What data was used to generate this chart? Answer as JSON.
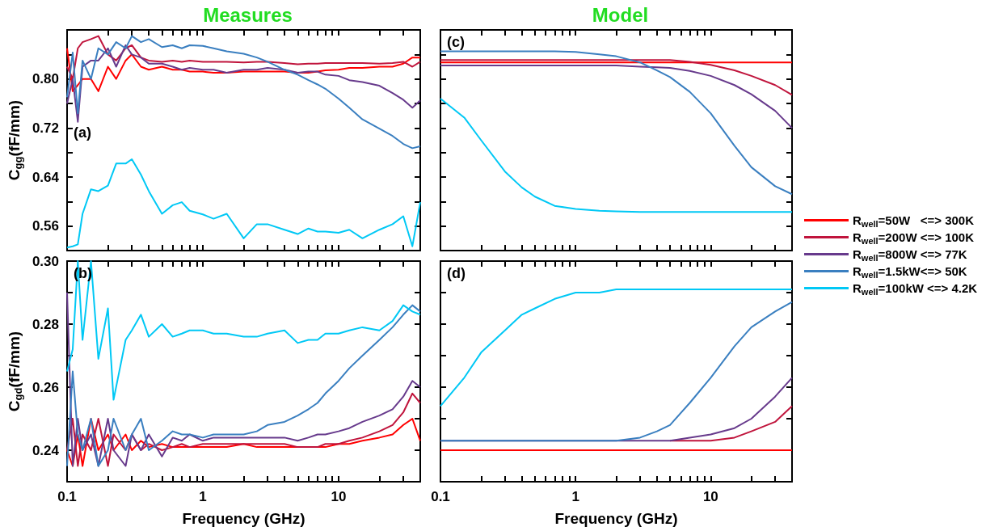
{
  "chart_data": [
    {
      "type": "line",
      "title": "Measures",
      "ylabel": "C$_{gg}$(fF/mm)",
      "annotations": [
        "(a)"
      ],
      "log": "x",
      "grid": false,
      "tick_labels": "y",
      "xlim": [
        0.1,
        40
      ],
      "xticks": [
        0.1,
        {
          "value": 0.2,
          "label": null
        },
        {
          "value": 0.3,
          "label": null
        },
        {
          "value": 0.4,
          "label": null
        },
        {
          "value": 0.5,
          "label": null
        },
        {
          "value": 0.6,
          "label": null
        },
        {
          "value": 0.7,
          "label": null
        },
        {
          "value": 0.8,
          "label": null
        },
        {
          "value": 0.9,
          "label": null
        },
        1,
        {
          "value": 2,
          "label": null
        },
        {
          "value": 3,
          "label": null
        },
        {
          "value": 4,
          "label": null
        },
        {
          "value": 5,
          "label": null
        },
        {
          "value": 6,
          "label": null
        },
        {
          "value": 7,
          "label": null
        },
        {
          "value": 8,
          "label": null
        },
        {
          "value": 9,
          "label": null
        },
        10,
        {
          "value": 20,
          "label": null
        },
        {
          "value": 30,
          "label": null
        }
      ],
      "ylim": [
        0.52,
        0.88
      ],
      "yticks": [
        0.56,
        {
          "value": 0.6,
          "label": null
        },
        0.64,
        {
          "value": 0.68,
          "label": null
        },
        0.72,
        {
          "value": 0.76,
          "label": null
        },
        {
          "value": 0.8,
          "label": "0.80"
        },
        {
          "value": 0.84,
          "label": null
        }
      ],
      "x": [
        0.1,
        0.11,
        0.12,
        0.13,
        0.15,
        0.17,
        0.2,
        0.23,
        0.27,
        0.3,
        0.35,
        0.4,
        0.5,
        0.6,
        0.7,
        0.8,
        1,
        1.2,
        1.5,
        2,
        2.5,
        3,
        4,
        5,
        6,
        7,
        8,
        10,
        12,
        15,
        20,
        25,
        30,
        35,
        40
      ],
      "series": [
        {
          "color": "#ff0000",
          "values": [
            0.85,
            0.78,
            0.79,
            0.8,
            0.8,
            0.78,
            0.82,
            0.8,
            0.83,
            0.84,
            0.82,
            0.815,
            0.82,
            0.815,
            0.815,
            0.812,
            0.812,
            0.81,
            0.81,
            0.812,
            0.812,
            0.812,
            0.812,
            0.81,
            0.81,
            0.812,
            0.814,
            0.815,
            0.818,
            0.818,
            0.82,
            0.82,
            0.825,
            0.835,
            0.835
          ]
        },
        {
          "color": "#c0143c",
          "values": [
            0.82,
            0.8,
            0.85,
            0.86,
            0.865,
            0.87,
            0.84,
            0.83,
            0.85,
            0.855,
            0.835,
            0.83,
            0.828,
            0.83,
            0.828,
            0.83,
            0.828,
            0.828,
            0.828,
            0.827,
            0.828,
            0.828,
            0.826,
            0.824,
            0.825,
            0.825,
            0.826,
            0.826,
            0.826,
            0.826,
            0.825,
            0.826,
            0.828,
            0.82,
            0.828
          ]
        },
        {
          "color": "#673a8c",
          "values": [
            0.76,
            0.8,
            0.73,
            0.82,
            0.83,
            0.83,
            0.85,
            0.82,
            0.855,
            0.84,
            0.835,
            0.825,
            0.825,
            0.82,
            0.815,
            0.818,
            0.815,
            0.815,
            0.81,
            0.815,
            0.815,
            0.818,
            0.815,
            0.81,
            0.812,
            0.812,
            0.807,
            0.805,
            0.798,
            0.795,
            0.789,
            0.777,
            0.766,
            0.753,
            0.765
          ]
        },
        {
          "color": "#3a7fc0",
          "values": [
            0.77,
            0.843,
            0.744,
            0.83,
            0.8,
            0.85,
            0.84,
            0.86,
            0.85,
            0.87,
            0.86,
            0.865,
            0.852,
            0.855,
            0.85,
            0.855,
            0.854,
            0.85,
            0.845,
            0.841,
            0.835,
            0.828,
            0.815,
            0.807,
            0.798,
            0.791,
            0.784,
            0.768,
            0.753,
            0.734,
            0.719,
            0.707,
            0.694,
            0.687,
            0.69
          ]
        },
        {
          "color": "#00c8f5",
          "values": [
            0.525,
            0.527,
            0.53,
            0.58,
            0.62,
            0.617,
            0.626,
            0.662,
            0.662,
            0.669,
            0.644,
            0.617,
            0.58,
            0.594,
            0.599,
            0.585,
            0.579,
            0.572,
            0.58,
            0.54,
            0.563,
            0.563,
            0.554,
            0.547,
            0.556,
            0.551,
            0.551,
            0.549,
            0.554,
            0.54,
            0.554,
            0.563,
            0.576,
            0.527,
            0.599
          ]
        }
      ]
    },
    {
      "type": "line",
      "title": "Model",
      "annotations": [
        "(c)"
      ],
      "log": "x",
      "grid": false,
      "tick_labels": false,
      "legend": "right",
      "xlim": [
        0.1,
        40
      ],
      "xticks": [
        0.1,
        {
          "value": 0.2,
          "label": null
        },
        {
          "value": 0.3,
          "label": null
        },
        {
          "value": 0.4,
          "label": null
        },
        {
          "value": 0.5,
          "label": null
        },
        {
          "value": 0.6,
          "label": null
        },
        {
          "value": 0.7,
          "label": null
        },
        {
          "value": 0.8,
          "label": null
        },
        {
          "value": 0.9,
          "label": null
        },
        1,
        {
          "value": 2,
          "label": null
        },
        {
          "value": 3,
          "label": null
        },
        {
          "value": 4,
          "label": null
        },
        {
          "value": 5,
          "label": null
        },
        {
          "value": 6,
          "label": null
        },
        {
          "value": 7,
          "label": null
        },
        {
          "value": 8,
          "label": null
        },
        {
          "value": 9,
          "label": null
        },
        10,
        {
          "value": 20,
          "label": null
        },
        {
          "value": 30,
          "label": null
        }
      ],
      "ylim": [
        0.52,
        0.88
      ],
      "yticks": [
        0.56,
        0.6,
        0.64,
        0.68,
        0.72,
        0.76,
        0.8,
        0.84
      ],
      "x": [
        0.1,
        0.15,
        0.2,
        0.3,
        0.4,
        0.5,
        0.7,
        1,
        1.5,
        2,
        3,
        4,
        5,
        7,
        10,
        15,
        20,
        30,
        40
      ],
      "series": [
        {
          "name": "R$_{well}$=50W   <=> 300K",
          "color": "#ff0000",
          "values": [
            0.827,
            0.827,
            0.827,
            0.827,
            0.827,
            0.827,
            0.827,
            0.827,
            0.827,
            0.827,
            0.827,
            0.827,
            0.827,
            0.827,
            0.827,
            0.827,
            0.827,
            0.827,
            0.827
          ]
        },
        {
          "name": "R$_{well}$=200W <=> 100K",
          "color": "#c0143c",
          "values": [
            0.831,
            0.831,
            0.831,
            0.831,
            0.831,
            0.831,
            0.831,
            0.831,
            0.831,
            0.831,
            0.831,
            0.831,
            0.831,
            0.828,
            0.823,
            0.814,
            0.805,
            0.79,
            0.774
          ]
        },
        {
          "name": "R$_{well}$=800W <=> 77K",
          "color": "#673a8c",
          "values": [
            0.822,
            0.822,
            0.822,
            0.822,
            0.822,
            0.822,
            0.822,
            0.822,
            0.822,
            0.822,
            0.82,
            0.819,
            0.818,
            0.813,
            0.805,
            0.79,
            0.775,
            0.748,
            0.72
          ]
        },
        {
          "name": "R$_{well}$=1.5kW<=> 50K",
          "color": "#3a7fc0",
          "values": [
            0.845,
            0.845,
            0.845,
            0.845,
            0.845,
            0.845,
            0.845,
            0.844,
            0.84,
            0.837,
            0.827,
            0.814,
            0.803,
            0.779,
            0.744,
            0.691,
            0.656,
            0.625,
            0.612
          ]
        },
        {
          "name": "R$_{well}$=100kW <=> 4.2K",
          "color": "#00c8f5",
          "values": [
            0.768,
            0.737,
            0.7,
            0.649,
            0.623,
            0.608,
            0.593,
            0.588,
            0.585,
            0.584,
            0.583,
            0.583,
            0.583,
            0.583,
            0.583,
            0.583,
            0.583,
            0.583,
            0.583
          ]
        }
      ]
    },
    {
      "type": "line",
      "xlabel": "Frequency (GHz)",
      "ylabel": "C$_{gd}$(fF/mm)",
      "annotations": [
        "(b)"
      ],
      "log": "x",
      "grid": false,
      "xlim": [
        0.1,
        40
      ],
      "xticks": [
        0.1,
        {
          "value": 0.2,
          "label": null
        },
        {
          "value": 0.3,
          "label": null
        },
        {
          "value": 0.4,
          "label": null
        },
        {
          "value": 0.5,
          "label": null
        },
        {
          "value": 0.6,
          "label": null
        },
        {
          "value": 0.7,
          "label": null
        },
        {
          "value": 0.8,
          "label": null
        },
        {
          "value": 0.9,
          "label": null
        },
        1,
        {
          "value": 2,
          "label": null
        },
        {
          "value": 3,
          "label": null
        },
        {
          "value": 4,
          "label": null
        },
        {
          "value": 5,
          "label": null
        },
        {
          "value": 6,
          "label": null
        },
        {
          "value": 7,
          "label": null
        },
        {
          "value": 8,
          "label": null
        },
        {
          "value": 9,
          "label": null
        },
        10,
        {
          "value": 20,
          "label": null
        },
        {
          "value": 30,
          "label": null
        }
      ],
      "ylim": [
        0.23,
        0.3
      ],
      "yticks": [
        0.24,
        {
          "value": 0.25,
          "label": null
        },
        0.26,
        {
          "value": 0.27,
          "label": null
        },
        0.28,
        {
          "value": 0.29,
          "label": null
        },
        {
          "value": 0.3,
          "label": "0.30"
        }
      ],
      "x": [
        0.1,
        0.11,
        0.12,
        0.13,
        0.15,
        0.17,
        0.2,
        0.22,
        0.27,
        0.3,
        0.35,
        0.4,
        0.5,
        0.6,
        0.7,
        0.8,
        1,
        1.2,
        1.5,
        2,
        2.5,
        3,
        4,
        5,
        6,
        7,
        8,
        10,
        12,
        15,
        20,
        25,
        30,
        35,
        40
      ],
      "series": [
        {
          "color": "#ff0000",
          "values": [
            0.24,
            0.235,
            0.245,
            0.235,
            0.25,
            0.24,
            0.245,
            0.24,
            0.245,
            0.24,
            0.243,
            0.241,
            0.242,
            0.241,
            0.241,
            0.241,
            0.241,
            0.241,
            0.241,
            0.242,
            0.241,
            0.241,
            0.241,
            0.241,
            0.241,
            0.241,
            0.241,
            0.242,
            0.242,
            0.243,
            0.244,
            0.245,
            0.248,
            0.25,
            0.243
          ]
        },
        {
          "color": "#c0143c",
          "values": [
            0.24,
            0.25,
            0.235,
            0.245,
            0.24,
            0.25,
            0.235,
            0.245,
            0.24,
            0.245,
            0.24,
            0.242,
            0.24,
            0.241,
            0.242,
            0.241,
            0.242,
            0.242,
            0.242,
            0.242,
            0.242,
            0.242,
            0.242,
            0.241,
            0.241,
            0.241,
            0.242,
            0.242,
            0.243,
            0.244,
            0.246,
            0.248,
            0.252,
            0.258,
            0.255
          ]
        },
        {
          "color": "#673a8c",
          "values": [
            0.29,
            0.235,
            0.25,
            0.24,
            0.245,
            0.235,
            0.25,
            0.24,
            0.235,
            0.245,
            0.24,
            0.245,
            0.238,
            0.244,
            0.243,
            0.245,
            0.243,
            0.244,
            0.244,
            0.244,
            0.244,
            0.244,
            0.244,
            0.243,
            0.244,
            0.245,
            0.245,
            0.246,
            0.247,
            0.249,
            0.251,
            0.253,
            0.257,
            0.262,
            0.26
          ]
        },
        {
          "color": "#3a7fc0",
          "values": [
            0.235,
            0.265,
            0.245,
            0.24,
            0.25,
            0.235,
            0.24,
            0.25,
            0.24,
            0.245,
            0.25,
            0.24,
            0.243,
            0.246,
            0.245,
            0.245,
            0.244,
            0.245,
            0.245,
            0.245,
            0.246,
            0.248,
            0.249,
            0.251,
            0.253,
            0.255,
            0.258,
            0.262,
            0.266,
            0.27,
            0.275,
            0.279,
            0.283,
            0.286,
            0.284
          ]
        },
        {
          "color": "#00c8f5",
          "values": [
            0.265,
            0.272,
            0.3,
            0.275,
            0.3,
            0.269,
            0.285,
            0.256,
            0.275,
            0.278,
            0.283,
            0.276,
            0.28,
            0.276,
            0.277,
            0.278,
            0.278,
            0.277,
            0.277,
            0.276,
            0.276,
            0.277,
            0.278,
            0.274,
            0.275,
            0.275,
            0.277,
            0.277,
            0.278,
            0.279,
            0.278,
            0.281,
            0.286,
            0.284,
            0.283
          ]
        }
      ]
    },
    {
      "type": "line",
      "xlabel": "Frequency (GHz)",
      "annotations": [
        "(d)"
      ],
      "log": "x",
      "grid": false,
      "tick_labels": "x",
      "xlim": [
        0.1,
        40
      ],
      "xticks": [
        0.1,
        {
          "value": 0.2,
          "label": null
        },
        {
          "value": 0.3,
          "label": null
        },
        {
          "value": 0.4,
          "label": null
        },
        {
          "value": 0.5,
          "label": null
        },
        {
          "value": 0.6,
          "label": null
        },
        {
          "value": 0.7,
          "label": null
        },
        {
          "value": 0.8,
          "label": null
        },
        {
          "value": 0.9,
          "label": null
        },
        1,
        {
          "value": 2,
          "label": null
        },
        {
          "value": 3,
          "label": null
        },
        {
          "value": 4,
          "label": null
        },
        {
          "value": 5,
          "label": null
        },
        {
          "value": 6,
          "label": null
        },
        {
          "value": 7,
          "label": null
        },
        {
          "value": 8,
          "label": null
        },
        {
          "value": 9,
          "label": null
        },
        10,
        {
          "value": 20,
          "label": null
        },
        {
          "value": 30,
          "label": null
        }
      ],
      "ylim": [
        0.23,
        0.3
      ],
      "yticks": [
        0.24,
        0.25,
        0.26,
        0.27,
        0.28,
        0.29,
        0.3
      ],
      "x": [
        0.1,
        0.15,
        0.2,
        0.3,
        0.4,
        0.5,
        0.7,
        1,
        1.5,
        2,
        3,
        4,
        5,
        7,
        10,
        15,
        20,
        30,
        40
      ],
      "series": [
        {
          "color": "#ff0000",
          "values": [
            0.24,
            0.24,
            0.24,
            0.24,
            0.24,
            0.24,
            0.24,
            0.24,
            0.24,
            0.24,
            0.24,
            0.24,
            0.24,
            0.24,
            0.24,
            0.24,
            0.24,
            0.24,
            0.24
          ]
        },
        {
          "color": "#c0143c",
          "values": [
            null,
            null,
            null,
            null,
            null,
            null,
            null,
            null,
            null,
            null,
            null,
            null,
            0.243,
            0.243,
            0.243,
            0.244,
            0.246,
            0.249,
            0.254
          ]
        },
        {
          "color": "#673a8c",
          "values": [
            0.243,
            0.243,
            0.243,
            0.243,
            0.243,
            0.243,
            0.243,
            0.243,
            0.243,
            0.243,
            0.243,
            0.243,
            0.243,
            0.244,
            0.245,
            0.247,
            0.25,
            0.257,
            0.263
          ]
        },
        {
          "color": "#3a7fc0",
          "values": [
            0.243,
            0.243,
            0.243,
            0.243,
            0.243,
            0.243,
            0.243,
            0.243,
            0.243,
            0.243,
            0.244,
            0.246,
            0.248,
            0.255,
            0.263,
            0.273,
            0.279,
            0.284,
            0.287
          ]
        },
        {
          "color": "#00c8f5",
          "values": [
            0.254,
            0.263,
            0.271,
            0.278,
            0.283,
            0.285,
            0.288,
            0.29,
            0.29,
            0.291,
            0.291,
            0.291,
            0.291,
            0.291,
            0.291,
            0.291,
            0.291,
            0.291,
            0.291
          ]
        }
      ]
    }
  ]
}
